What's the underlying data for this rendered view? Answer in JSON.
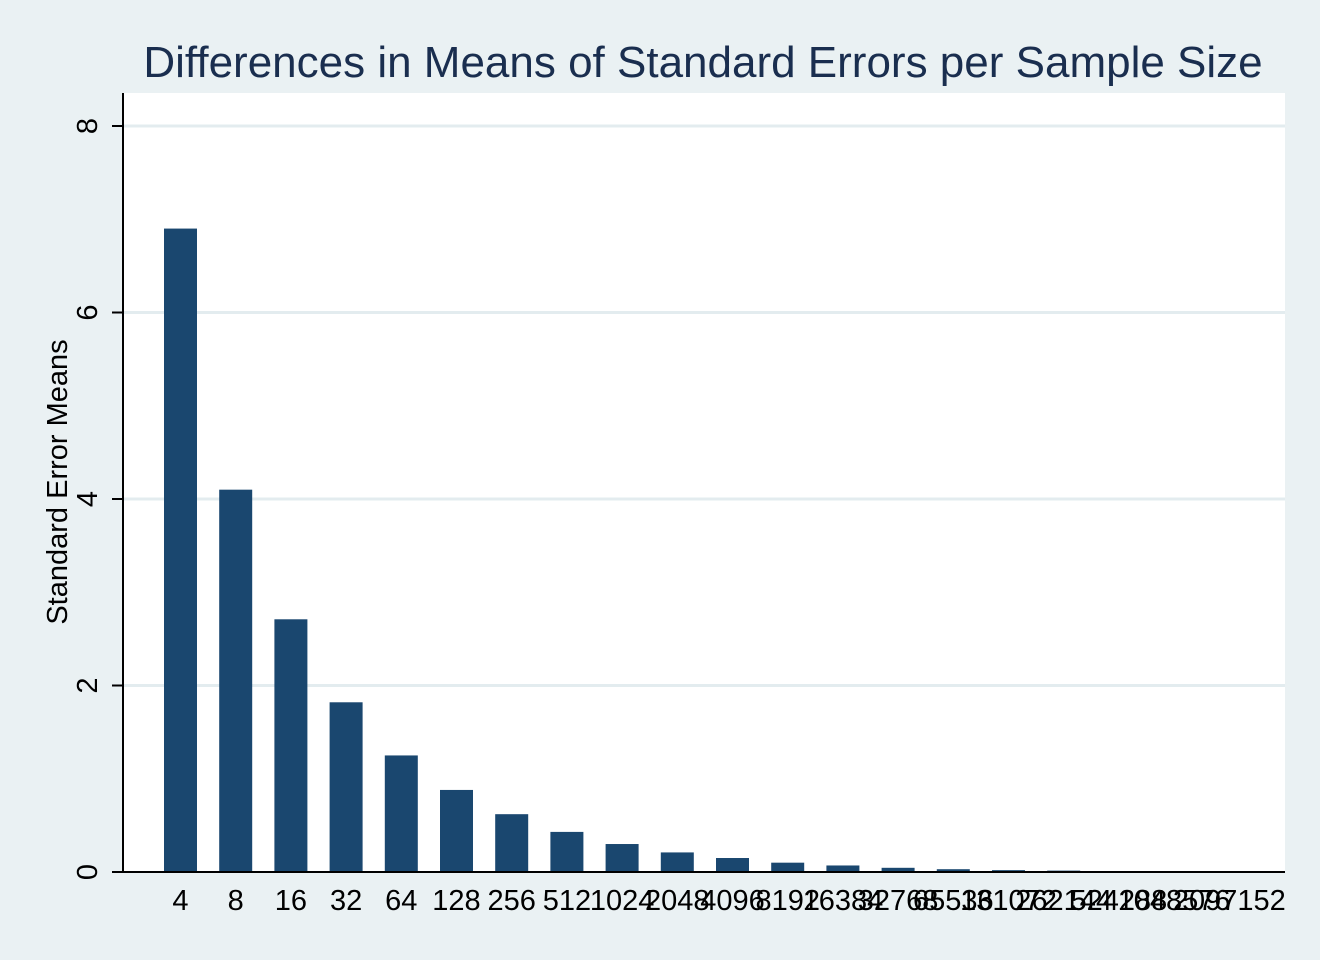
{
  "chart_data": {
    "type": "bar",
    "title": "Differences in Means of Standard Errors per Sample Size",
    "xlabel": "",
    "ylabel": "Standard Error Means",
    "categories": [
      "4",
      "8",
      "16",
      "32",
      "64",
      "128",
      "256",
      "512",
      "1024",
      "2048",
      "4096",
      "8192",
      "16384",
      "32768",
      "65536",
      "131072",
      "262144",
      "524288",
      "1048576",
      "2097152"
    ],
    "values": [
      6.9,
      4.1,
      2.71,
      1.82,
      1.25,
      0.88,
      0.62,
      0.43,
      0.3,
      0.21,
      0.15,
      0.1,
      0.07,
      0.045,
      0.03,
      0.02,
      0.015,
      0.01,
      0.007,
      0.005
    ],
    "ylim": [
      0,
      8
    ],
    "yticks": [
      0,
      2,
      4,
      6,
      8
    ],
    "grid": true,
    "colors": {
      "bar": "#1a476f",
      "background": "#eaf1f3",
      "plot_area": "#ffffff",
      "title": "#1a2e4f",
      "grid": "#e3ecef"
    }
  }
}
